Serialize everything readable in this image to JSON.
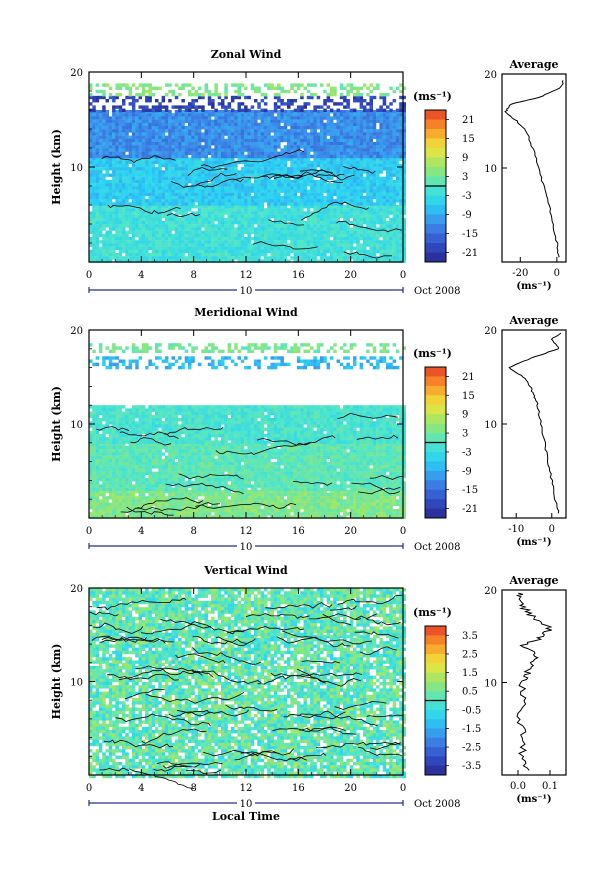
{
  "panels": [
    {
      "title": "Zonal Wind",
      "ylabel": "Height (km)",
      "y_ticks": [
        "20",
        "10"
      ],
      "x_ticks": [
        "0",
        "4",
        "8",
        "12",
        "16",
        "20",
        "0"
      ],
      "day_label": "10",
      "month_label": "Oct 2008",
      "colorbar_unit": "(ms⁻¹)",
      "colorbar_ticks": [
        "21",
        "15",
        "9",
        "3",
        "-3",
        "-9",
        "-15",
        "-21"
      ],
      "profile_title": "Average",
      "profile_y_ticks": [
        "20",
        "10"
      ],
      "profile_x_ticks": [
        "-20",
        "0"
      ],
      "profile_xlabel": "(ms⁻¹)"
    },
    {
      "title": "Meridional Wind",
      "ylabel": "Height (km)",
      "y_ticks": [
        "20",
        "10"
      ],
      "x_ticks": [
        "0",
        "4",
        "8",
        "12",
        "16",
        "20",
        "0"
      ],
      "day_label": "10",
      "month_label": "Oct 2008",
      "colorbar_unit": "(ms⁻¹)",
      "colorbar_ticks": [
        "21",
        "15",
        "9",
        "3",
        "-3",
        "-9",
        "-15",
        "-21"
      ],
      "profile_title": "Average",
      "profile_y_ticks": [
        "20",
        "10"
      ],
      "profile_x_ticks": [
        "-10",
        "0"
      ],
      "profile_xlabel": "(ms⁻¹)"
    },
    {
      "title": "Vertical Wind",
      "ylabel": "Height (km)",
      "y_ticks": [
        "20",
        "10"
      ],
      "x_ticks": [
        "0",
        "4",
        "8",
        "12",
        "16",
        "20",
        "0"
      ],
      "day_label": "10",
      "month_label": "Oct 2008",
      "xlabel": "Local Time",
      "colorbar_unit": "(ms⁻¹)",
      "colorbar_ticks": [
        "3.5",
        "2.5",
        "1.5",
        "0.5",
        "-0.5",
        "-1.5",
        "-2.5",
        "-3.5"
      ],
      "profile_title": "Average",
      "profile_y_ticks": [
        "20",
        "10"
      ],
      "profile_x_ticks": [
        "0.0",
        "0.1"
      ],
      "profile_xlabel": "(ms⁻¹)"
    }
  ],
  "chart_data": [
    {
      "type": "heatmap",
      "title": "Zonal Wind",
      "ylabel": "Height (km)",
      "ylim": [
        0,
        20
      ],
      "xlim": [
        0,
        24
      ],
      "x_tick_values": [
        0,
        4,
        8,
        12,
        16,
        20,
        24
      ],
      "colorbar": {
        "unit": "ms-1",
        "range": [
          -24,
          24
        ],
        "ticks": [
          21,
          15,
          9,
          3,
          -3,
          -9,
          -15,
          -21
        ]
      },
      "fields": [
        {
          "h0": 0,
          "h1": 6,
          "value": -2
        },
        {
          "h0": 6,
          "h1": 11,
          "value": -6
        },
        {
          "h0": 11,
          "h1": 16,
          "value": -12
        },
        {
          "h0": 16,
          "h1": 17.5,
          "value": -20
        },
        {
          "h0": 17.5,
          "h1": 18.8,
          "value": 4
        }
      ],
      "average_profile": {
        "xlim": [
          -30,
          5
        ],
        "x_tick_values": [
          -20,
          0
        ],
        "y": [
          0.5,
          2,
          4,
          6,
          8,
          10,
          12,
          14,
          15,
          16,
          16.8,
          17.5,
          18.5,
          19.5
        ],
        "x": [
          1,
          0,
          -2,
          -4,
          -7,
          -10,
          -13,
          -17,
          -22,
          -28,
          -25,
          -10,
          2,
          4
        ]
      }
    },
    {
      "type": "heatmap",
      "title": "Meridional Wind",
      "ylabel": "Height (km)",
      "ylim": [
        0,
        20
      ],
      "xlim": [
        0,
        24
      ],
      "x_tick_values": [
        0,
        4,
        8,
        12,
        16,
        20,
        24
      ],
      "colorbar": {
        "unit": "ms-1",
        "range": [
          -24,
          24
        ],
        "ticks": [
          21,
          15,
          9,
          3,
          -3,
          -9,
          -15,
          -21
        ]
      },
      "fields": [
        {
          "h0": 0,
          "h1": 3,
          "value": 4
        },
        {
          "h0": 3,
          "h1": 8,
          "value": 1
        },
        {
          "h0": 8,
          "h1": 12,
          "value": -1
        },
        {
          "h0": 16,
          "h1": 17.2,
          "value": -8
        },
        {
          "h0": 17.6,
          "h1": 18.6,
          "value": 3
        }
      ],
      "average_profile": {
        "xlim": [
          -14,
          4
        ],
        "x_tick_values": [
          -10,
          0
        ],
        "y": [
          0.5,
          2,
          4,
          6,
          8,
          10,
          12,
          13,
          14,
          15,
          16,
          17,
          18,
          19,
          19.8
        ],
        "x": [
          2,
          1,
          0,
          -1,
          -2,
          -3,
          -4,
          -5,
          -6,
          -8,
          -12,
          -6,
          2,
          0,
          3
        ]
      }
    },
    {
      "type": "heatmap",
      "title": "Vertical Wind",
      "ylabel": "Height (km)",
      "xlabel": "Local Time",
      "ylim": [
        0,
        20
      ],
      "xlim": [
        0,
        24
      ],
      "x_tick_values": [
        0,
        4,
        8,
        12,
        16,
        20,
        24
      ],
      "colorbar": {
        "unit": "ms-1",
        "range": [
          -4,
          4
        ],
        "ticks": [
          3.5,
          2.5,
          1.5,
          0.5,
          -0.5,
          -1.5,
          -2.5,
          -3.5
        ]
      },
      "fields": [
        {
          "h0": 0,
          "h1": 12,
          "value": 0.2
        },
        {
          "h0": 12,
          "h1": 15,
          "value": 0.1
        },
        {
          "h0": 15,
          "h1": 20,
          "value": 0.2
        }
      ],
      "average_profile": {
        "xlim": [
          -0.05,
          0.15
        ],
        "x_tick_values": [
          0.0,
          0.1
        ],
        "y": [
          0.5,
          2,
          4,
          6,
          8,
          10,
          11,
          12,
          13,
          14,
          15,
          16,
          17,
          18,
          19,
          19.8
        ],
        "x": [
          0.03,
          0.01,
          0.02,
          0.0,
          0.02,
          0.01,
          0.03,
          0.04,
          0.06,
          0.02,
          0.08,
          0.1,
          0.05,
          0.02,
          0.0,
          0.01
        ]
      }
    }
  ]
}
